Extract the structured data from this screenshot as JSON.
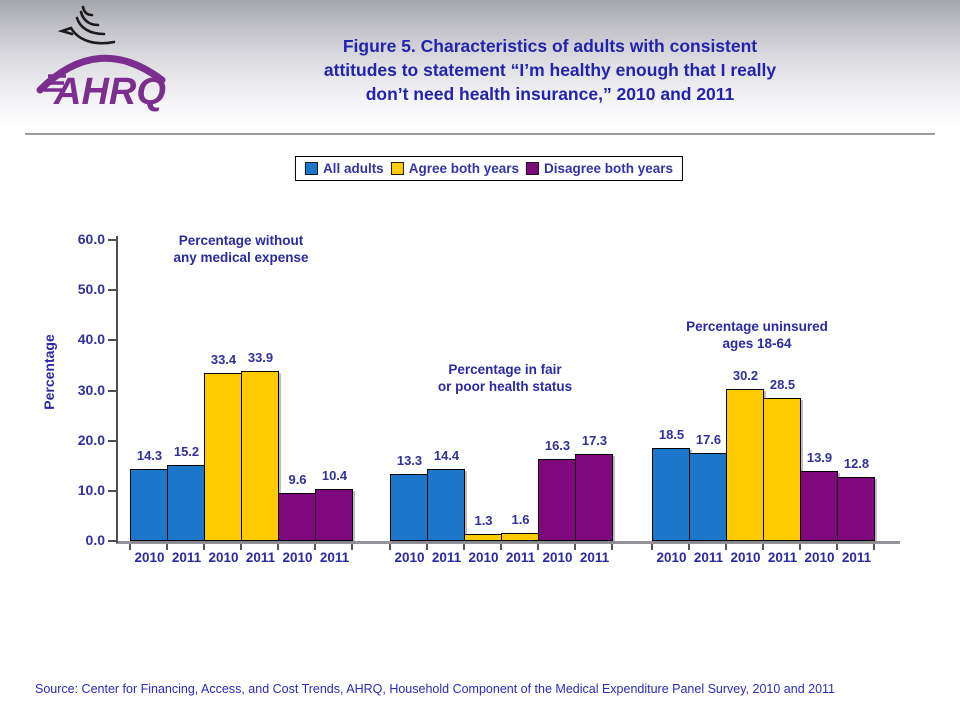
{
  "header": {
    "logo_label": "AHRQ",
    "title_lines": [
      "Figure 5. Characteristics of adults with consistent",
      "attitudes to statement “I’m healthy enough that I really",
      "don’t need health insurance,” 2010 and 2011"
    ]
  },
  "chart_data": {
    "type": "bar",
    "title": "",
    "xlabel": "",
    "ylabel": "Percentage",
    "ylim": [
      0,
      60
    ],
    "ytick_labels": [
      "0.0",
      "10.0",
      "20.0",
      "30.0",
      "40.0",
      "50.0",
      "60.0"
    ],
    "grid": false,
    "legend_position": "top",
    "years": [
      "2010",
      "2011"
    ],
    "series": [
      {
        "name": "All adults",
        "color": "#1c76c9"
      },
      {
        "name": "Agree both years",
        "color": "#ffcb00"
      },
      {
        "name": "Disagree both years",
        "color": "#7f087f"
      }
    ],
    "groups": [
      {
        "label_lines": [
          "Percentage without",
          "any medical expense"
        ],
        "values": [
          [
            14.3,
            15.2
          ],
          [
            33.4,
            33.9
          ],
          [
            9.6,
            10.4
          ]
        ]
      },
      {
        "label_lines": [
          "Percentage in fair",
          "or poor health status"
        ],
        "values": [
          [
            13.3,
            14.4
          ],
          [
            1.3,
            1.6
          ],
          [
            16.3,
            17.3
          ]
        ]
      },
      {
        "label_lines": [
          "Percentage uninsured",
          "ages 18-64"
        ],
        "values": [
          [
            18.5,
            17.6
          ],
          [
            30.2,
            28.5
          ],
          [
            13.9,
            12.8
          ]
        ]
      }
    ]
  },
  "footer": {
    "source": "Source: Center for Financing, Access, and Cost Trends, AHRQ,  Household Component of the Medical Expenditure Panel Survey,  2010 and 2011"
  },
  "colors": {
    "title_text": "#2323ac",
    "chart_text": "#2a2aa4",
    "source_text": "#2a2ac0",
    "bar_blue": "#1c76c9",
    "bar_yellow": "#ffcb00",
    "bar_purple": "#7f087f"
  }
}
